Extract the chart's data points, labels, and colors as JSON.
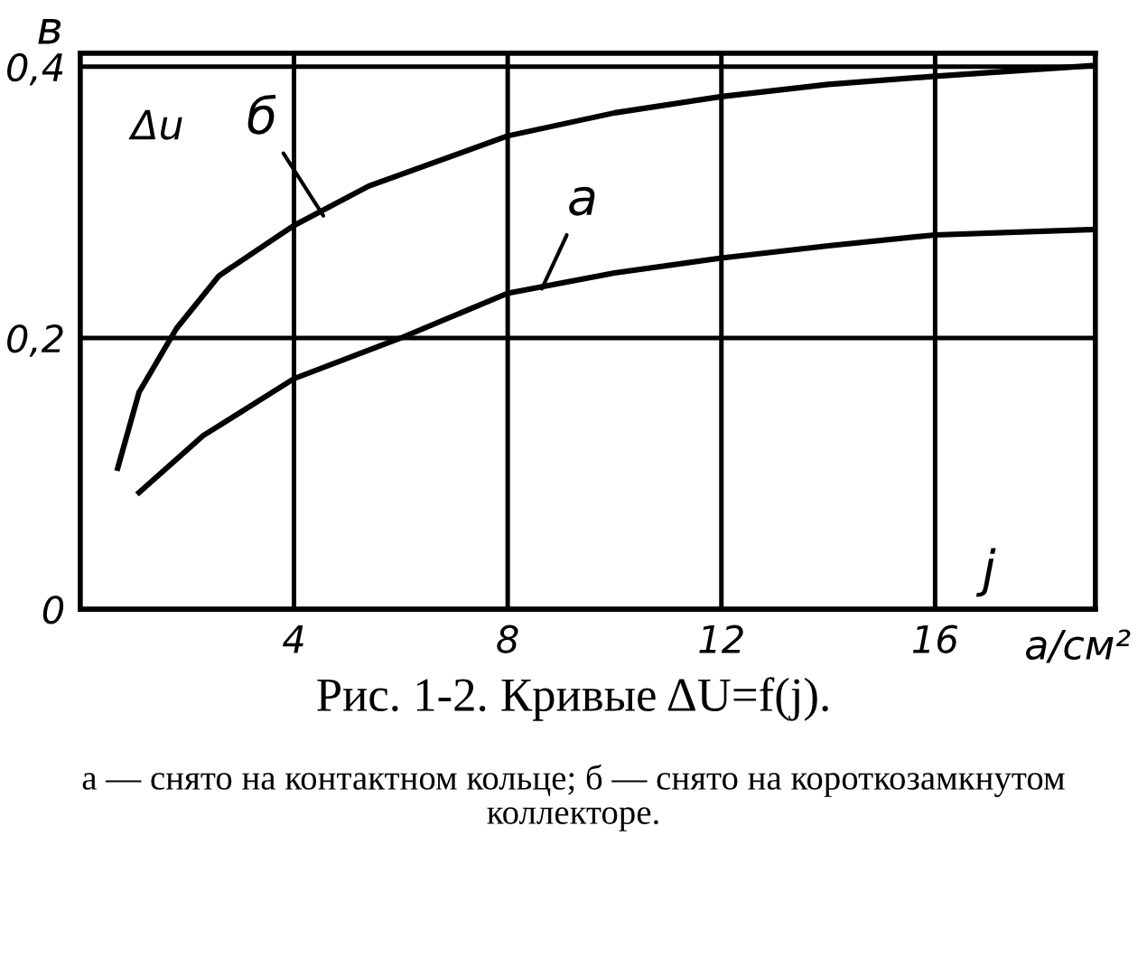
{
  "chart_data": {
    "type": "line",
    "title": "Рис. 1-2. Кривые ΔU=f(j).",
    "subtitle": "а — снято на контактном кольце; б — снято на короткозамкнутом коллекторе.",
    "xlabel": "j",
    "ylabel": "в",
    "annotations": [
      "Δu",
      "а/см²"
    ],
    "xlim": [
      0,
      19
    ],
    "ylim": [
      0,
      0.41
    ],
    "xticks": [
      4,
      8,
      12,
      16
    ],
    "yticks": [
      0,
      {
        "value": 0.2,
        "label": "0,2"
      },
      {
        "value": 0.4,
        "label": "0,4"
      }
    ],
    "grid": true,
    "marker": "none",
    "line_style": "solid",
    "series": [
      {
        "name": "а",
        "color": "#000000",
        "x": [
          1.1,
          2.3,
          4,
          6,
          8,
          10,
          12,
          14,
          16,
          19
        ],
        "values": [
          0.086,
          0.128,
          0.17,
          0.2,
          0.233,
          0.248,
          0.259,
          0.268,
          0.276,
          0.28
        ]
      },
      {
        "name": "б",
        "color": "#000000",
        "x": [
          0.7,
          1.1,
          1.8,
          2.6,
          4,
          5.4,
          8,
          10,
          12,
          14,
          16,
          19
        ],
        "values": [
          0.104,
          0.16,
          0.207,
          0.246,
          0.283,
          0.312,
          0.349,
          0.366,
          0.378,
          0.387,
          0.393,
          0.401
        ]
      }
    ]
  }
}
